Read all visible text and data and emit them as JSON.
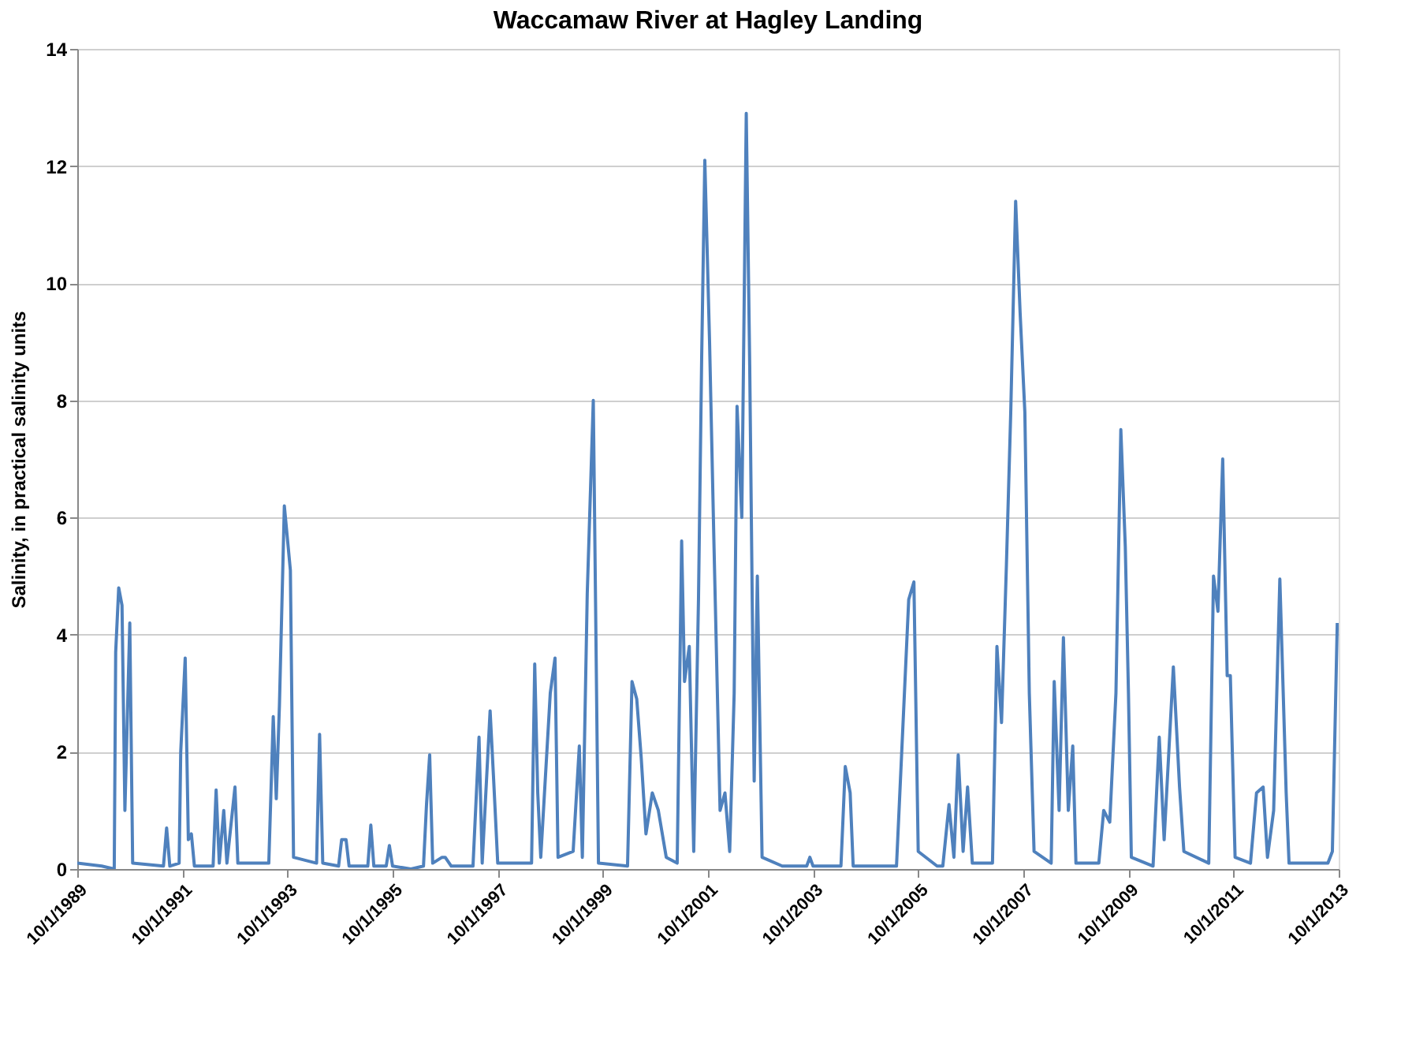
{
  "chart_data": {
    "type": "line",
    "title": "Waccamaw River at Hagley Landing",
    "ylabel": "Salinity, in practical salinity units",
    "xlim": [
      "1989-10-01",
      "2013-10-01"
    ],
    "xticks": [
      {
        "value": "1989-10-01",
        "label": "10/1/1989"
      },
      {
        "value": "1991-10-01",
        "label": "10/1/1991"
      },
      {
        "value": "1993-10-01",
        "label": "10/1/1993"
      },
      {
        "value": "1995-10-01",
        "label": "10/1/1995"
      },
      {
        "value": "1997-10-01",
        "label": "10/1/1997"
      },
      {
        "value": "1999-10-01",
        "label": "10/1/1999"
      },
      {
        "value": "2001-10-01",
        "label": "10/1/2001"
      },
      {
        "value": "2003-10-01",
        "label": "10/1/2003"
      },
      {
        "value": "2005-10-01",
        "label": "10/1/2005"
      },
      {
        "value": "2007-10-01",
        "label": "10/1/2007"
      },
      {
        "value": "2009-10-01",
        "label": "10/1/2009"
      },
      {
        "value": "2011-10-01",
        "label": "10/1/2011"
      },
      {
        "value": "2013-10-01",
        "label": "10/1/2013"
      }
    ],
    "ylim": [
      0,
      14
    ],
    "yticks": [
      0,
      2,
      4,
      6,
      8,
      10,
      12,
      14
    ],
    "grid": "y",
    "marker": "none",
    "line_style": "solid",
    "x": [
      "1989-10-01",
      "1990-03-20",
      "1990-06-15",
      "1990-06-25",
      "1990-07-16",
      "1990-08-08",
      "1990-08-28",
      "1990-10-01",
      "1990-10-21",
      "1991-05-23",
      "1991-06-14",
      "1991-07-06",
      "1991-09-09",
      "1991-09-20",
      "1991-10-21",
      "1991-11-12",
      "1991-12-03",
      "1991-12-24",
      "1992-05-02",
      "1992-05-23",
      "1992-06-14",
      "1992-07-15",
      "1992-08-06",
      "1992-10-01",
      "1992-10-21",
      "1993-05-24",
      "1993-06-24",
      "1993-07-15",
      "1993-08-06",
      "1993-09-09",
      "1993-10-21",
      "1993-11-12",
      "1994-04-21",
      "1994-05-12",
      "1994-06-03",
      "1994-09-21",
      "1994-10-12",
      "1994-11-12",
      "1994-12-03",
      "1995-04-12",
      "1995-05-03",
      "1995-05-24",
      "1995-08-18",
      "1995-09-09",
      "1995-10-01",
      "1996-02-06",
      "1996-05-03",
      "1996-05-24",
      "1996-06-15",
      "1996-07-06",
      "1996-09-09",
      "1996-10-01",
      "1996-11-12",
      "1997-04-12",
      "1997-05-24",
      "1997-06-15",
      "1997-08-09",
      "1997-09-01",
      "1997-10-01",
      "1998-05-24",
      "1998-06-15",
      "1998-07-06",
      "1998-07-27",
      "1998-10-01",
      "1998-11-03",
      "1998-11-24",
      "1999-03-09",
      "1999-04-21",
      "1999-05-12",
      "1999-06-15",
      "1999-07-27",
      "1999-09-01",
      "2000-03-21",
      "2000-04-21",
      "2000-05-24",
      "2000-06-24",
      "2000-07-27",
      "2000-09-09",
      "2000-10-21",
      "2000-12-15",
      "2001-03-01",
      "2001-04-01",
      "2001-04-21",
      "2001-05-24",
      "2001-06-24",
      "2001-07-27",
      "2001-08-18",
      "2001-09-09",
      "2001-10-12",
      "2001-11-12",
      "2001-12-24",
      "2002-01-27",
      "2002-03-01",
      "2002-04-01",
      "2002-04-21",
      "2002-05-24",
      "2002-06-24",
      "2002-07-18",
      "2002-08-18",
      "2002-09-09",
      "2002-10-12",
      "2003-03-01",
      "2003-08-18",
      "2003-09-09",
      "2003-10-01",
      "2004-04-12",
      "2004-05-12",
      "2004-06-15",
      "2004-07-06",
      "2005-05-03",
      "2005-07-27",
      "2005-09-01",
      "2005-10-01",
      "2006-02-09",
      "2006-03-21",
      "2006-05-03",
      "2006-06-06",
      "2006-07-06",
      "2006-08-09",
      "2006-09-09",
      "2006-10-12",
      "2007-03-01",
      "2007-04-01",
      "2007-05-03",
      "2007-06-06",
      "2007-07-06",
      "2007-08-09",
      "2007-09-09",
      "2007-10-12",
      "2007-11-12",
      "2007-12-15",
      "2008-04-12",
      "2008-05-03",
      "2008-06-06",
      "2008-07-06",
      "2008-08-09",
      "2008-09-09",
      "2008-10-01",
      "2009-03-09",
      "2009-04-12",
      "2009-05-24",
      "2009-07-06",
      "2009-08-09",
      "2009-09-09",
      "2009-10-01",
      "2009-10-21",
      "2010-03-21",
      "2010-05-03",
      "2010-06-06",
      "2010-08-09",
      "2010-09-21",
      "2010-10-21",
      "2011-04-12",
      "2011-05-15",
      "2011-06-15",
      "2011-07-18",
      "2011-08-18",
      "2011-09-09",
      "2011-10-12",
      "2012-01-27",
      "2012-03-09",
      "2012-04-24",
      "2012-05-24",
      "2012-07-06",
      "2012-08-18",
      "2012-10-01",
      "2012-10-21",
      "2013-07-18",
      "2013-08-18",
      "2013-09-21"
    ],
    "series": [
      {
        "color": "#4f81bd",
        "values": [
          0.1,
          0.05,
          0,
          3.7,
          4.8,
          4.5,
          1.0,
          4.2,
          0.1,
          0.05,
          0.7,
          0.05,
          0.1,
          2.0,
          3.6,
          0.5,
          0.6,
          0.05,
          0.05,
          1.35,
          0.1,
          1.0,
          0.1,
          1.4,
          0.1,
          0.1,
          2.6,
          1.2,
          2.8,
          6.2,
          5.1,
          0.2,
          0.1,
          2.3,
          0.1,
          0.05,
          0.5,
          0.5,
          0.05,
          0.05,
          0.75,
          0.05,
          0.05,
          0.4,
          0.05,
          0,
          0.05,
          1.1,
          1.95,
          0.1,
          0.2,
          0.2,
          0.05,
          0.05,
          2.25,
          0.1,
          2.7,
          1.6,
          0.1,
          0.1,
          3.5,
          1.3,
          0.2,
          3.0,
          3.6,
          0.2,
          0.3,
          2.1,
          0.2,
          4.7,
          8.0,
          0.1,
          0.05,
          3.2,
          2.9,
          1.9,
          0.6,
          1.3,
          1.0,
          0.2,
          0.1,
          5.6,
          3.2,
          3.8,
          0.3,
          4.6,
          8.7,
          12.1,
          9.0,
          5.5,
          1.0,
          1.3,
          0.3,
          3.0,
          7.9,
          6.0,
          12.9,
          8.6,
          1.5,
          5.0,
          0.2,
          0.05,
          0.05,
          0.2,
          0.05,
          0.05,
          1.75,
          1.3,
          0.05,
          0.05,
          4.6,
          4.9,
          0.3,
          0.05,
          0.05,
          1.1,
          0.2,
          1.95,
          0.3,
          1.4,
          0.1,
          0.1,
          3.8,
          2.5,
          5.2,
          7.8,
          11.4,
          9.5,
          7.8,
          3.0,
          0.3,
          0.1,
          3.2,
          1.0,
          3.95,
          1.0,
          2.1,
          0.1,
          0.1,
          1.0,
          0.8,
          3.0,
          7.5,
          5.5,
          3.0,
          0.2,
          0.05,
          2.25,
          0.5,
          3.45,
          1.4,
          0.3,
          0.1,
          5.0,
          4.4,
          7.0,
          3.3,
          3.3,
          0.2,
          0.1,
          1.3,
          1.4,
          0.2,
          1.0,
          4.95,
          1.3,
          0.1,
          0.1,
          0.3,
          4.2
        ]
      }
    ]
  }
}
